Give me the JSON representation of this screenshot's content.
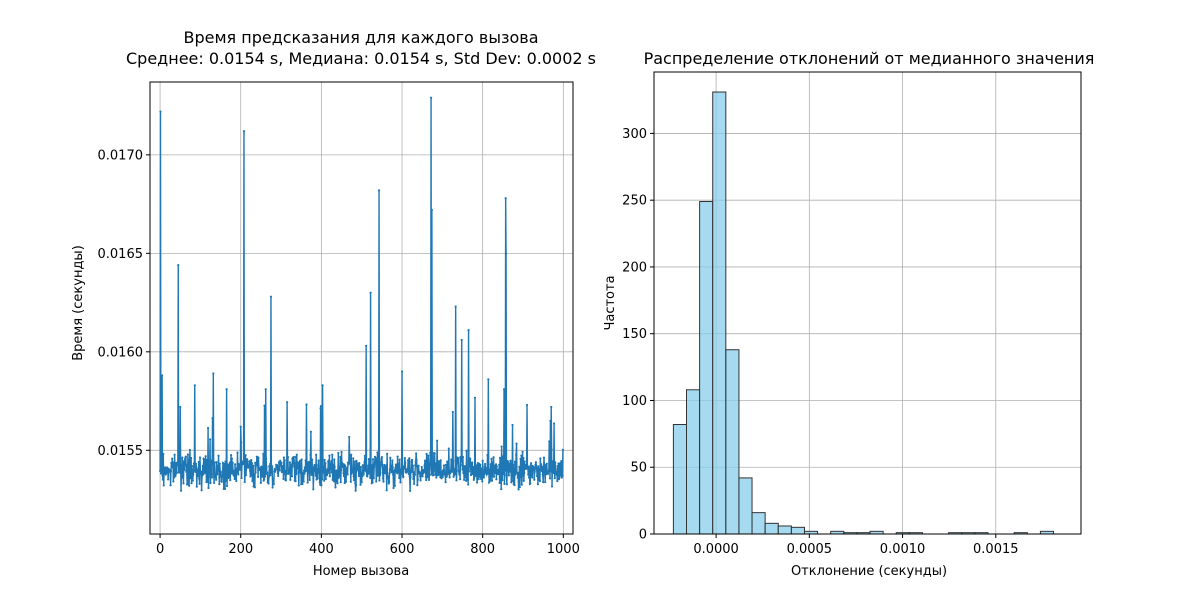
{
  "chart_data": [
    {
      "type": "line",
      "title_line1": "Время предсказания для каждого вызова",
      "title_line2": "Среднее: 0.0154 s, Медиана: 0.0154 s, Std Dev: 0.0002 s",
      "xlabel": "Номер вызова",
      "ylabel": "Время (секунды)",
      "xlim": [
        -25,
        1024
      ],
      "ylim": [
        0.015075,
        0.01737
      ],
      "xticks": [
        0,
        200,
        400,
        600,
        800,
        1000
      ],
      "yticks": [
        0.0155,
        0.016,
        0.0165,
        0.017
      ],
      "ytick_labels": [
        "0.0155",
        "0.0160",
        "0.0165",
        "0.0170"
      ],
      "grid": true,
      "color": "#1f77b4",
      "series": [
        {
          "n_points": 1000,
          "baseline": 0.0154,
          "noise": 0.00012,
          "seed": 7,
          "spikes": [
            [
              1,
              0.01722
            ],
            [
              5,
              0.01588
            ],
            [
              45,
              0.01644
            ],
            [
              50,
              0.01572
            ],
            [
              86,
              0.01583
            ],
            [
              132,
              0.01589
            ],
            [
              165,
              0.01581
            ],
            [
              208,
              0.01712
            ],
            [
              262,
              0.01581
            ],
            [
              275,
              0.01628
            ],
            [
              403,
              0.01583
            ],
            [
              511,
              0.01603
            ],
            [
              522,
              0.0163
            ],
            [
              543,
              0.01682
            ],
            [
              600,
              0.0159
            ],
            [
              672,
              0.01729
            ],
            [
              674,
              0.01672
            ],
            [
              733,
              0.01623
            ],
            [
              748,
              0.01606
            ],
            [
              765,
              0.01611
            ],
            [
              814,
              0.01586
            ],
            [
              853,
              0.01581
            ],
            [
              857,
              0.01678
            ],
            [
              858,
              0.0165
            ],
            [
              910,
              0.01573
            ],
            [
              970,
              0.01572
            ]
          ]
        }
      ]
    },
    {
      "type": "bar",
      "title": "Распределение отклонений от медианного значения",
      "xlabel": "Отклонение (секунды)",
      "ylabel": "Частота",
      "xlim": [
        -0.000333,
        0.001957
      ],
      "ylim": [
        0,
        346
      ],
      "xticks": [
        0.0,
        0.0005,
        0.001,
        0.0015
      ],
      "xtick_labels": [
        "0.0000",
        "0.0005",
        "0.0010",
        "0.0015"
      ],
      "yticks": [
        0,
        50,
        100,
        150,
        200,
        250,
        300
      ],
      "grid": true,
      "fill": "#87ceeb",
      "edge": "#333333",
      "bin_start": -0.000229,
      "bin_width": 7.03e-05,
      "values": [
        82,
        108,
        249,
        331,
        138,
        42,
        16,
        8,
        6,
        5,
        2,
        0,
        2,
        1,
        1,
        2,
        0,
        1,
        1,
        0,
        0,
        1,
        1,
        1,
        0,
        0,
        1,
        0,
        2
      ]
    }
  ]
}
